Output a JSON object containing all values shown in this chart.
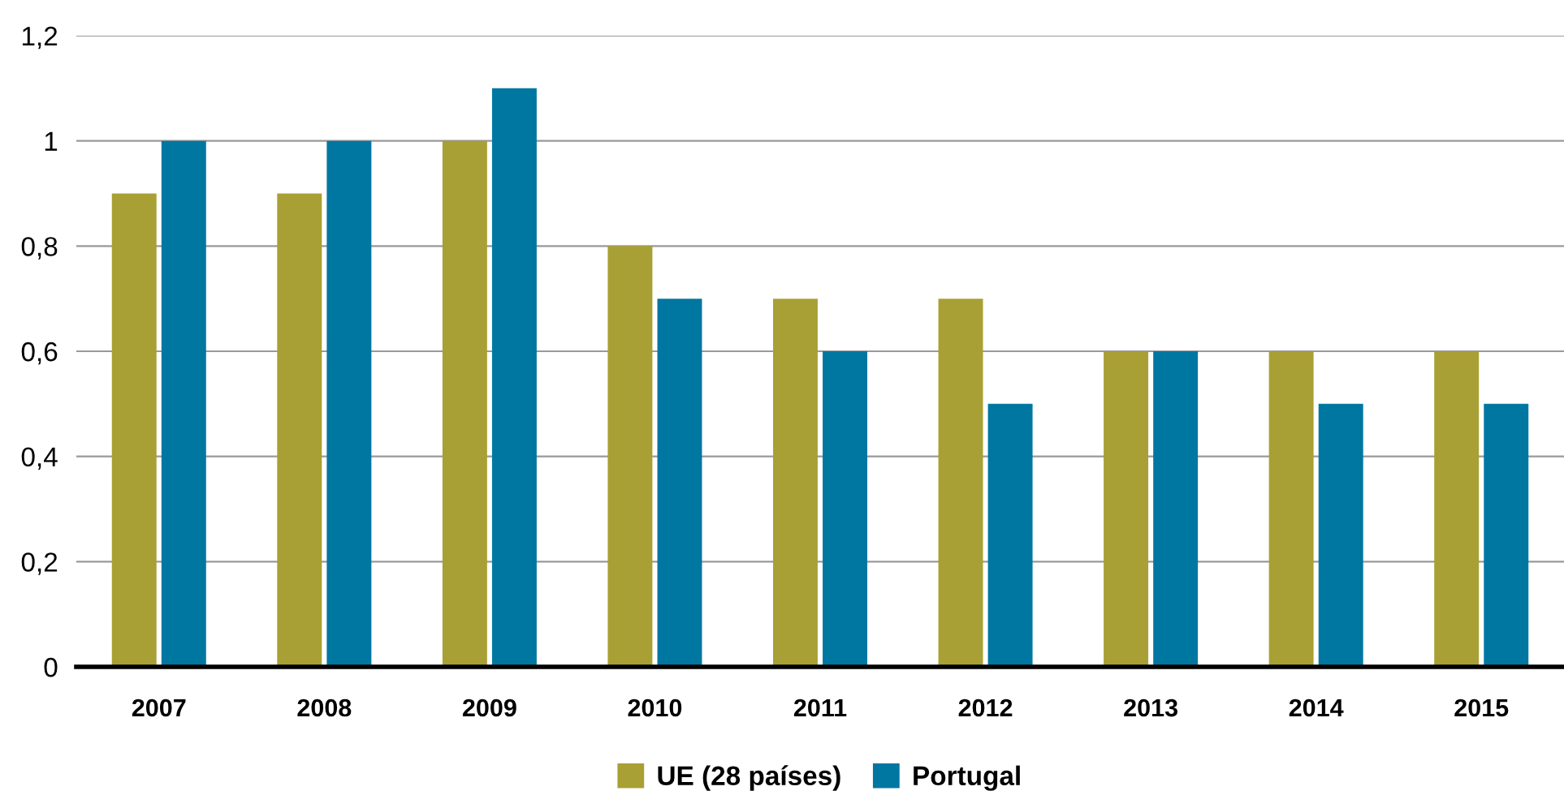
{
  "chart_data": {
    "type": "bar",
    "categories": [
      "2007",
      "2008",
      "2009",
      "2010",
      "2011",
      "2012",
      "2013",
      "2014",
      "2015"
    ],
    "series": [
      {
        "name": "UE (28 países)",
        "color": "#a8a034",
        "values": [
          0.9,
          0.9,
          1.0,
          0.8,
          0.7,
          0.7,
          0.6,
          0.6,
          0.6
        ]
      },
      {
        "name": "Portugal",
        "color": "#0077a1",
        "values": [
          1.0,
          1.0,
          1.1,
          0.7,
          0.6,
          0.5,
          0.6,
          0.5,
          0.5
        ]
      }
    ],
    "ylim": [
      0,
      1.2
    ],
    "yticks": [
      {
        "value": 0,
        "label": "0"
      },
      {
        "value": 0.2,
        "label": "0,2"
      },
      {
        "value": 0.4,
        "label": "0,4"
      },
      {
        "value": 0.6,
        "label": "0,6"
      },
      {
        "value": 0.8,
        "label": "0,8"
      },
      {
        "value": 1,
        "label": "1"
      },
      {
        "value": 1.2,
        "label": "1,2"
      }
    ],
    "grid": "y",
    "legend": "bottom"
  }
}
